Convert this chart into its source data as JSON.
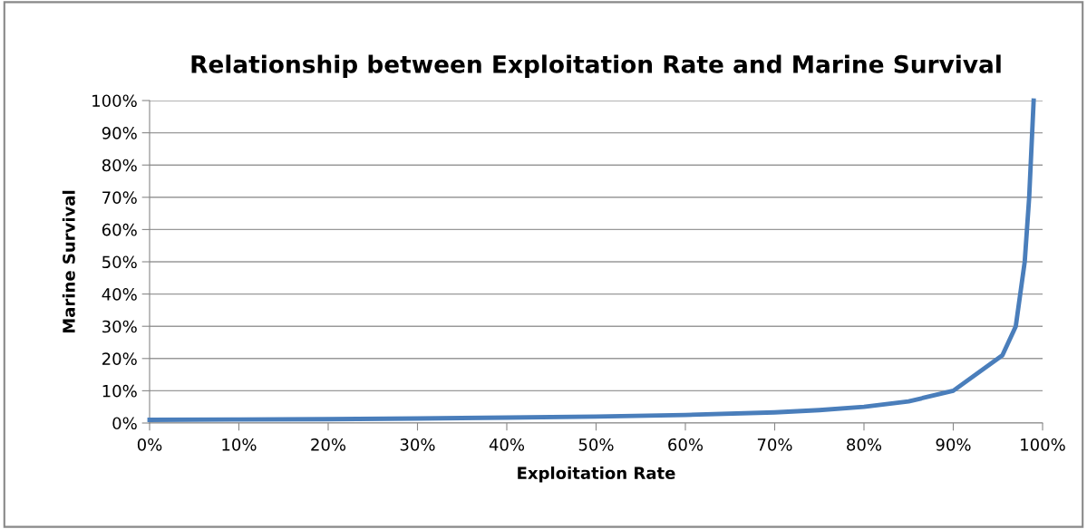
{
  "chart_data": {
    "type": "line",
    "title": "Relationship between Exploitation Rate and Marine Survival",
    "xlabel": "Exploitation Rate",
    "ylabel": "Marine Survival",
    "x": [
      0,
      10,
      20,
      30,
      40,
      50,
      60,
      70,
      75,
      80,
      85,
      90,
      95.5,
      97,
      98,
      98.5,
      99
    ],
    "series": [
      {
        "color": "#4a7ebb",
        "values": [
          1,
          1.1,
          1.2,
          1.4,
          1.7,
          2,
          2.5,
          3.3,
          4,
          5,
          6.7,
          10,
          21,
          30,
          50,
          70,
          100
        ]
      }
    ],
    "xlim": [
      0,
      100
    ],
    "ylim": [
      0,
      100
    ],
    "xticks": [
      {
        "value": 0,
        "label": "0%"
      },
      {
        "value": 10,
        "label": "10%"
      },
      {
        "value": 20,
        "label": "20%"
      },
      {
        "value": 30,
        "label": "30%"
      },
      {
        "value": 40,
        "label": "40%"
      },
      {
        "value": 50,
        "label": "50%"
      },
      {
        "value": 60,
        "label": "60%"
      },
      {
        "value": 70,
        "label": "70%"
      },
      {
        "value": 80,
        "label": "80%"
      },
      {
        "value": 90,
        "label": "90%"
      },
      {
        "value": 100,
        "label": "100%"
      }
    ],
    "yticks": [
      {
        "value": 0,
        "label": "0%"
      },
      {
        "value": 10,
        "label": "10%"
      },
      {
        "value": 20,
        "label": "20%"
      },
      {
        "value": 30,
        "label": "30%"
      },
      {
        "value": 40,
        "label": "40%"
      },
      {
        "value": 50,
        "label": "50%"
      },
      {
        "value": 60,
        "label": "60%"
      },
      {
        "value": 70,
        "label": "70%"
      },
      {
        "value": 80,
        "label": "80%"
      },
      {
        "value": 90,
        "label": "90%"
      },
      {
        "value": 100,
        "label": "100%"
      }
    ],
    "grid": "y",
    "marker": "none",
    "line_style": "solid"
  }
}
